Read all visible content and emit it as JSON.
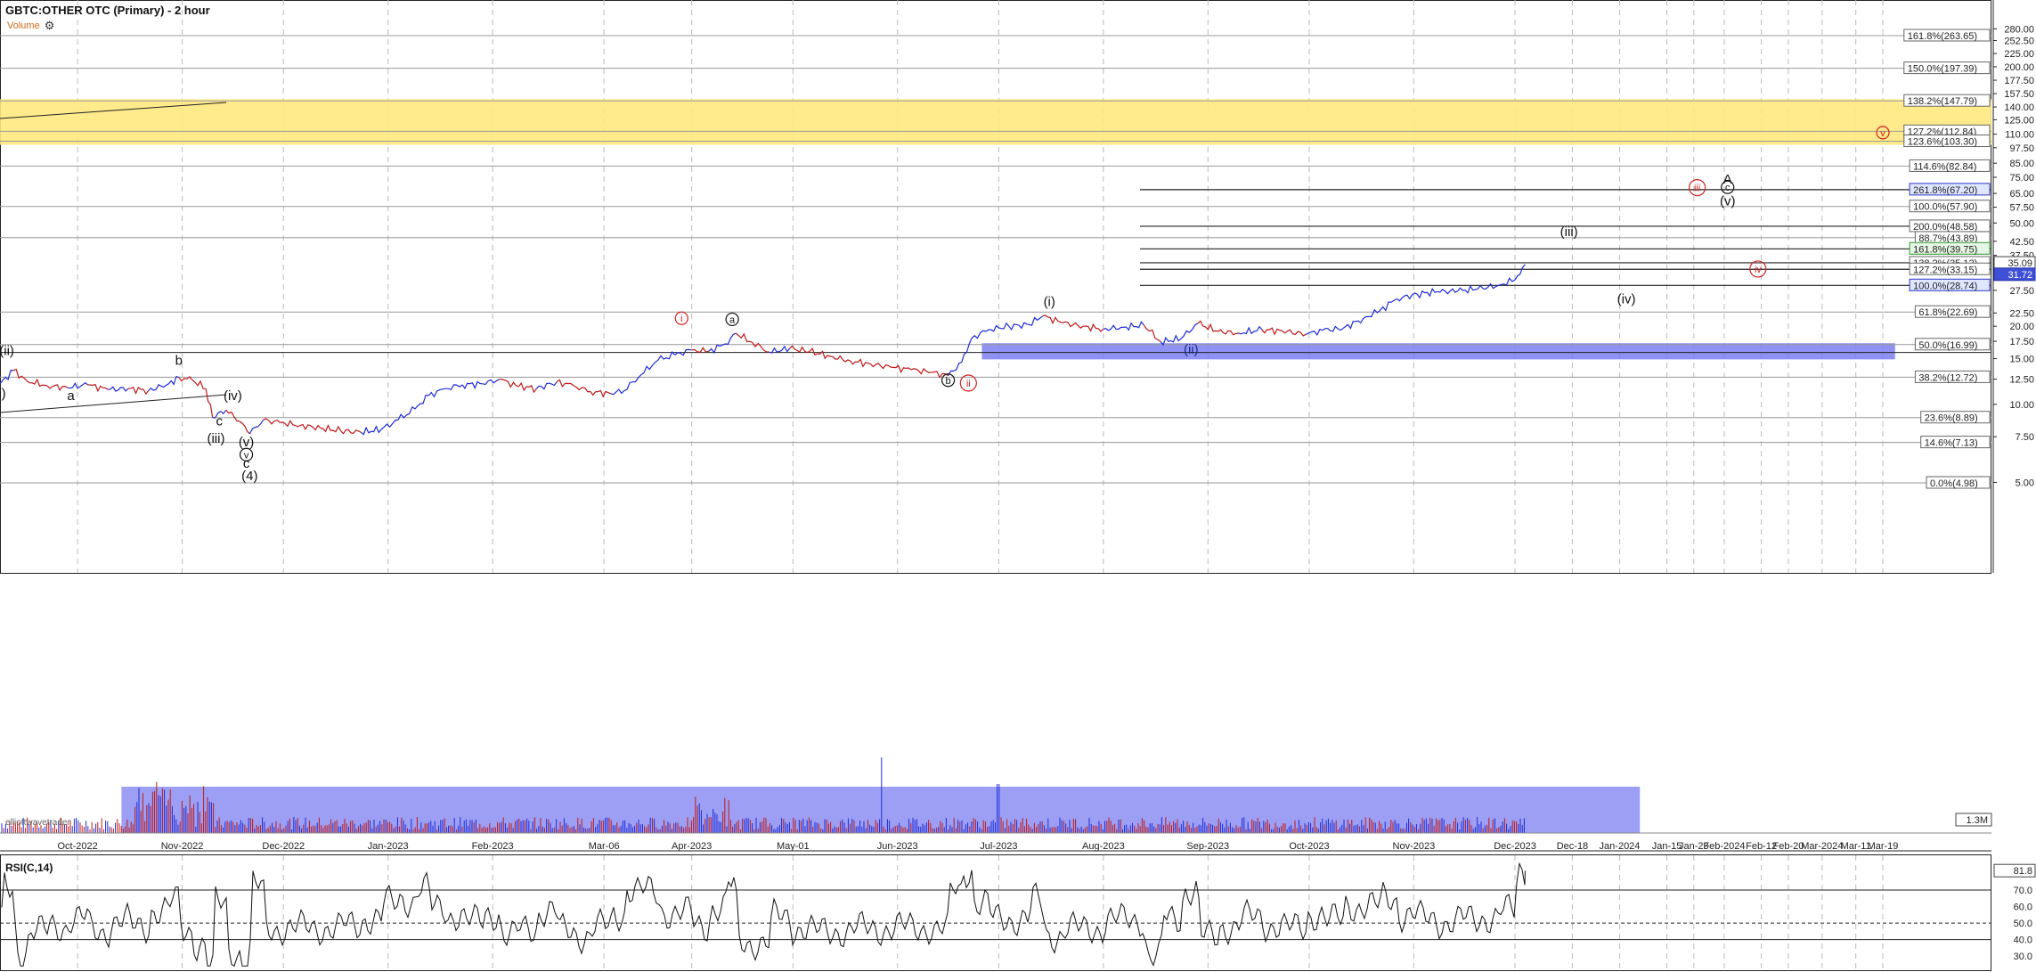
{
  "header": {
    "title": "GBTC:OTHER OTC (Primary) - 2 hour",
    "volume_label": "Volume",
    "rsi_label": "RSI(C,14)",
    "watermark": "elliottwavetrader"
  },
  "colors": {
    "fib_zone": "#ffe97f",
    "support_zone": "#7b7ff0",
    "volume_zone": "#7b7ff0",
    "price_up": "#1e2bd6",
    "price_down": "#c01818",
    "red_label": "#d42020"
  },
  "chart_data": {
    "type": "line",
    "title": "GBTC:OTHER OTC (Primary) - 2 hour",
    "price_axis": {
      "scale": "log",
      "ticks": [
        5.0,
        7.5,
        10.0,
        12.5,
        15.0,
        17.5,
        20.0,
        22.5,
        27.5,
        32.5,
        37.5,
        42.5,
        50.0,
        57.5,
        65.0,
        75.0,
        85.0,
        97.5,
        110.0,
        125.0,
        140.0,
        157.5,
        177.5,
        200.0,
        225.0,
        252.5,
        280.0
      ]
    },
    "time_axis": {
      "ticks": [
        "Oct-2022",
        "Nov-2022",
        "Dec-2022",
        "Jan-2023",
        "Feb-2023",
        "Mar-06",
        "Apr-2023",
        "May-01",
        "Jun-2023",
        "Jul-2023",
        "Aug-2023",
        "Sep-2023",
        "Oct-2023",
        "Nov-2023",
        "Dec-2023",
        "Dec-18",
        "Jan-2024",
        "Jan-15",
        "Jan-23",
        "Feb-2024",
        "Feb-12",
        "Feb-20",
        "Mar-2024",
        "Mar-11",
        "Mar-19"
      ]
    },
    "fib_levels": [
      {
        "label": "161.8%(263.65)",
        "value": 263.65
      },
      {
        "label": "150.0%(197.39)",
        "value": 197.39
      },
      {
        "label": "138.2%(147.79)",
        "value": 147.79
      },
      {
        "label": "127.2%(112.84)",
        "value": 112.84
      },
      {
        "label": "123.6%(103.30)",
        "value": 103.3
      },
      {
        "label": "114.6%(82.84)",
        "value": 82.84
      },
      {
        "label": "100.0%(57.90)",
        "value": 57.9
      },
      {
        "label": "88.7%(43.89)",
        "value": 43.89
      },
      {
        "label": "61.8%(22.69)",
        "value": 22.69
      },
      {
        "label": "50.0%(16.99)",
        "value": 16.99
      },
      {
        "label": "38.2%(12.72)",
        "value": 12.72
      },
      {
        "label": "23.6%(8.89)",
        "value": 8.89
      },
      {
        "label": "14.6%(7.13)",
        "value": 7.13
      },
      {
        "label": "0.0%(4.98)",
        "value": 4.98
      }
    ],
    "ext_levels": [
      {
        "label": "261.8%(67.20)",
        "value": 67.2,
        "style": "blue"
      },
      {
        "label": "200.0%(48.58)",
        "value": 48.58,
        "style": "plain"
      },
      {
        "label": "161.8%(39.75)",
        "value": 39.75,
        "style": "green"
      },
      {
        "label": "138.2%(35.12)",
        "value": 35.12,
        "style": "plain"
      },
      {
        "label": "127.2%(33.15)",
        "value": 33.15,
        "style": "plain"
      },
      {
        "label": "100.0%(28.74)",
        "value": 28.74,
        "style": "blue"
      }
    ],
    "last_price": {
      "value": 35.09,
      "label": "35.09"
    },
    "marker_price": {
      "value": 31.72,
      "label": "31.72"
    },
    "volume_label": "1.3M",
    "zones": [
      {
        "name": "fib-target-zone",
        "low": 100.0,
        "high": 150.0
      },
      {
        "name": "support-zone",
        "low": 14.9,
        "high": 17.2
      }
    ],
    "wave_labels": [
      {
        "text": "(i)",
        "date": "2022-09-08",
        "price": 10.6,
        "color": "black"
      },
      {
        "text": "(ii)",
        "date": "2022-09-10",
        "price": 15.5,
        "color": "black"
      },
      {
        "text": "a",
        "date": "2022-09-29",
        "price": 10.4,
        "color": "black"
      },
      {
        "text": "b",
        "date": "2022-10-31",
        "price": 14.2,
        "color": "black"
      },
      {
        "text": "(iv)",
        "date": "2022-11-16",
        "price": 10.4,
        "color": "black"
      },
      {
        "text": "c",
        "date": "2022-11-12",
        "price": 8.3,
        "color": "black"
      },
      {
        "text": "(iii)",
        "date": "2022-11-11",
        "price": 7.1,
        "color": "black"
      },
      {
        "text": "(v)",
        "date": "2022-11-20",
        "price": 6.9,
        "color": "black"
      },
      {
        "text": "v",
        "date": "2022-11-20",
        "price": 6.2,
        "color": "black",
        "circle": true
      },
      {
        "text": "c",
        "date": "2022-11-20",
        "price": 5.7,
        "color": "black"
      },
      {
        "text": "(4)",
        "date": "2022-11-21",
        "price": 5.1,
        "color": "black"
      },
      {
        "text": "i",
        "date": "2023-03-29",
        "price": 20.8,
        "color": "red",
        "circle": true
      },
      {
        "text": "a",
        "date": "2023-04-13",
        "price": 20.6,
        "color": "black",
        "circle": true
      },
      {
        "text": "b",
        "date": "2023-06-16",
        "price": 12.0,
        "color": "black",
        "circle": true
      },
      {
        "text": "ii",
        "date": "2023-06-22",
        "price": 11.7,
        "color": "red",
        "circle": true
      },
      {
        "text": "(i)",
        "date": "2023-07-16",
        "price": 23.9,
        "color": "black"
      },
      {
        "text": "(ii)",
        "date": "2023-08-27",
        "price": 15.7,
        "color": "navy"
      },
      {
        "text": "(iii)",
        "date": "2023-12-17",
        "price": 44.5,
        "color": "black"
      },
      {
        "text": "(iv)",
        "date": "2024-01-03",
        "price": 24.5,
        "color": "black"
      },
      {
        "text": "iii",
        "date": "2024-01-24",
        "price": 66.3,
        "color": "red",
        "circle": true
      },
      {
        "text": "A",
        "date": "2024-02-02",
        "price": 71.0,
        "color": "black"
      },
      {
        "text": "c",
        "date": "2024-02-02",
        "price": 66.5,
        "color": "black",
        "circle": true
      },
      {
        "text": "(v)",
        "date": "2024-02-02",
        "price": 58.5,
        "color": "black"
      },
      {
        "text": "iv",
        "date": "2024-02-11",
        "price": 32.2,
        "color": "red",
        "circle": true
      },
      {
        "text": "v",
        "date": "2024-03-19",
        "price": 108.0,
        "color": "red",
        "circle": true
      }
    ],
    "rsi": {
      "ticks": [
        30.0,
        40.0,
        50.0,
        60.0,
        70.0
      ],
      "current": {
        "value": 81.8,
        "label": "81.8"
      },
      "bands": [
        70,
        50,
        40
      ]
    },
    "price_series": [
      [
        "2022-09-08",
        12.0
      ],
      [
        "2022-09-12",
        13.5
      ],
      [
        "2022-09-16",
        12.3
      ],
      [
        "2022-09-22",
        11.8
      ],
      [
        "2022-09-28",
        11.6
      ],
      [
        "2022-10-04",
        11.9
      ],
      [
        "2022-10-10",
        11.4
      ],
      [
        "2022-10-16",
        11.5
      ],
      [
        "2022-10-22",
        11.3
      ],
      [
        "2022-10-28",
        12.0
      ],
      [
        "2022-10-31",
        12.7
      ],
      [
        "2022-11-04",
        12.4
      ],
      [
        "2022-11-08",
        11.5
      ],
      [
        "2022-11-10",
        8.9
      ],
      [
        "2022-11-14",
        9.5
      ],
      [
        "2022-11-18",
        8.6
      ],
      [
        "2022-11-21",
        7.7
      ],
      [
        "2022-11-25",
        8.7
      ],
      [
        "2022-11-30",
        8.5
      ],
      [
        "2022-12-06",
        8.3
      ],
      [
        "2022-12-12",
        8.1
      ],
      [
        "2022-12-18",
        7.9
      ],
      [
        "2022-12-24",
        7.8
      ],
      [
        "2022-12-30",
        8.0
      ],
      [
        "2023-01-04",
        8.7
      ],
      [
        "2023-01-09",
        9.6
      ],
      [
        "2023-01-13",
        10.8
      ],
      [
        "2023-01-18",
        11.5
      ],
      [
        "2023-01-23",
        11.9
      ],
      [
        "2023-01-29",
        12.0
      ],
      [
        "2023-02-03",
        12.5
      ],
      [
        "2023-02-08",
        11.8
      ],
      [
        "2023-02-14",
        11.5
      ],
      [
        "2023-02-20",
        12.2
      ],
      [
        "2023-02-25",
        11.8
      ],
      [
        "2023-03-02",
        11.2
      ],
      [
        "2023-03-08",
        11.0
      ],
      [
        "2023-03-12",
        11.3
      ],
      [
        "2023-03-17",
        13.0
      ],
      [
        "2023-03-22",
        14.8
      ],
      [
        "2023-03-27",
        15.5
      ],
      [
        "2023-04-01",
        16.2
      ],
      [
        "2023-04-06",
        16.0
      ],
      [
        "2023-04-11",
        17.1
      ],
      [
        "2023-04-14",
        18.8
      ],
      [
        "2023-04-19",
        17.3
      ],
      [
        "2023-04-24",
        15.9
      ],
      [
        "2023-04-30",
        16.4
      ],
      [
        "2023-05-06",
        16.0
      ],
      [
        "2023-05-12",
        15.3
      ],
      [
        "2023-05-18",
        14.7
      ],
      [
        "2023-05-24",
        14.3
      ],
      [
        "2023-05-30",
        13.9
      ],
      [
        "2023-06-05",
        13.6
      ],
      [
        "2023-06-11",
        13.3
      ],
      [
        "2023-06-16",
        12.9
      ],
      [
        "2023-06-20",
        14.5
      ],
      [
        "2023-06-23",
        18.0
      ],
      [
        "2023-06-28",
        19.4
      ],
      [
        "2023-07-04",
        20.0
      ],
      [
        "2023-07-10",
        20.3
      ],
      [
        "2023-07-14",
        21.9
      ],
      [
        "2023-07-20",
        20.6
      ],
      [
        "2023-07-26",
        20.0
      ],
      [
        "2023-08-01",
        19.5
      ],
      [
        "2023-08-07",
        19.8
      ],
      [
        "2023-08-13",
        20.2
      ],
      [
        "2023-08-18",
        17.4
      ],
      [
        "2023-08-24",
        17.9
      ],
      [
        "2023-08-29",
        20.5
      ],
      [
        "2023-09-04",
        19.1
      ],
      [
        "2023-09-10",
        18.8
      ],
      [
        "2023-09-17",
        19.4
      ],
      [
        "2023-09-23",
        19.2
      ],
      [
        "2023-09-30",
        18.6
      ],
      [
        "2023-10-05",
        19.3
      ],
      [
        "2023-10-11",
        19.6
      ],
      [
        "2023-10-17",
        21.4
      ],
      [
        "2023-10-22",
        23.0
      ],
      [
        "2023-10-27",
        25.5
      ],
      [
        "2023-11-02",
        26.6
      ],
      [
        "2023-11-08",
        27.2
      ],
      [
        "2023-11-14",
        27.3
      ],
      [
        "2023-11-20",
        27.9
      ],
      [
        "2023-11-26",
        28.7
      ],
      [
        "2023-12-01",
        30.2
      ],
      [
        "2023-12-04",
        34.6
      ]
    ]
  }
}
